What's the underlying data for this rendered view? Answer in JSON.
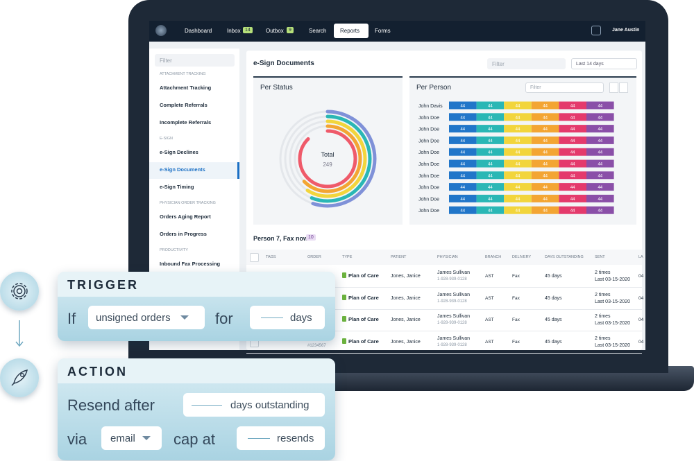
{
  "nav": {
    "items": [
      "Dashboard",
      "Inbox",
      "Outbox",
      "Search",
      "Reports",
      "Forms"
    ],
    "inbox_badge": "14",
    "outbox_badge": "9",
    "user": "Jane Austin"
  },
  "sidebar": {
    "filter": "Filter",
    "groups": [
      {
        "heading": "ATTACHMENT TRACKING",
        "items": [
          "Attachment Tracking",
          "Complete Referrals",
          "Incomplete Referrals"
        ]
      },
      {
        "heading": "E-SIGN",
        "items": [
          "e-Sign Declines",
          "e-Sign Documents",
          "e-Sign Timing"
        ]
      },
      {
        "heading": "PHYSICIAN ORDER TRACKING",
        "items": [
          "Orders Aging Report",
          "Orders in Progress"
        ]
      },
      {
        "heading": "PRODUCTIVITY",
        "items": [
          "Inbound Fax Processing"
        ]
      }
    ]
  },
  "header": {
    "title": "e-Sign Documents",
    "filter": "Filter",
    "range": "Last 14 days"
  },
  "per_status": {
    "title": "Per Status",
    "total_label": "Total",
    "total": 249
  },
  "per_person": {
    "title": "Per Person",
    "filter": "Filter",
    "colors": [
      "#2176c9",
      "#2ab7b5",
      "#f2d53c",
      "#f3a533",
      "#e43a6c",
      "#8a4fa8"
    ],
    "people": [
      {
        "name": "John Davis",
        "values": [
          44,
          44,
          44,
          44,
          44,
          44
        ]
      },
      {
        "name": "John Doe",
        "values": [
          44,
          44,
          44,
          44,
          44,
          44
        ]
      },
      {
        "name": "John Doe",
        "values": [
          44,
          44,
          44,
          44,
          44,
          44
        ]
      },
      {
        "name": "John Doe",
        "values": [
          44,
          44,
          44,
          44,
          44,
          44
        ]
      },
      {
        "name": "John Doe",
        "values": [
          44,
          44,
          44,
          44,
          44,
          44
        ]
      },
      {
        "name": "John Doe",
        "values": [
          44,
          44,
          44,
          44,
          44,
          44
        ]
      },
      {
        "name": "John Doe",
        "values": [
          44,
          44,
          44,
          44,
          44,
          44
        ]
      },
      {
        "name": "John Doe",
        "values": [
          44,
          44,
          44,
          44,
          44,
          44
        ]
      },
      {
        "name": "John Doe",
        "values": [
          44,
          44,
          44,
          44,
          44,
          44
        ]
      },
      {
        "name": "John Doe",
        "values": [
          44,
          44,
          44,
          44,
          44,
          44
        ]
      }
    ]
  },
  "queue": {
    "title": "Person 7, Fax now",
    "count": "10"
  },
  "table": {
    "columns": [
      "TAGS",
      "ORDER",
      "TYPE",
      "PATIENT",
      "PHYSICIAN",
      "BRANCH",
      "DELIVERY",
      "DAYS OUTSTANDING",
      "SENT",
      "LA"
    ],
    "rows": [
      {
        "type": "Plan of Care",
        "patient": "Jones, Janice",
        "physician": "James Sullivan",
        "phone": "1-928-939-0128",
        "branch": "AST",
        "delivery": "Fax",
        "days": "45 days",
        "sent": "2 times",
        "last": "Last 03-15-2020",
        "la": "04"
      },
      {
        "type": "Plan of Care",
        "patient": "Jones, Janice",
        "physician": "James Sullivan",
        "phone": "1-928-939-0128",
        "branch": "AST",
        "delivery": "Fax",
        "days": "45 days",
        "sent": "2 times",
        "last": "Last 03-15-2020",
        "la": "04"
      },
      {
        "type": "Plan of Care",
        "patient": "Jones, Janice",
        "physician": "James Sullivan",
        "phone": "1-928-939-0128",
        "branch": "AST",
        "delivery": "Fax",
        "days": "45 days",
        "sent": "2 times",
        "last": "Last 03-15-2020",
        "la": "04"
      },
      {
        "order": "#1234567",
        "type": "Plan of Care",
        "patient": "Jones, Janice",
        "physician": "James Sullivan",
        "phone": "1-928-939-0128",
        "branch": "AST",
        "delivery": "Fax",
        "days": "45 days",
        "sent": "2 times",
        "last": "Last 03-15-2020",
        "la": "04"
      }
    ]
  },
  "trigger": {
    "title": "TRIGGER",
    "if": "If",
    "condition": "unsigned orders",
    "for": "for",
    "unit": "days"
  },
  "action": {
    "title": "ACTION",
    "resend": "Resend after",
    "unit": "days outstanding",
    "via": "via",
    "channel": "email",
    "cap": "cap at",
    "cap_unit": "resends"
  }
}
